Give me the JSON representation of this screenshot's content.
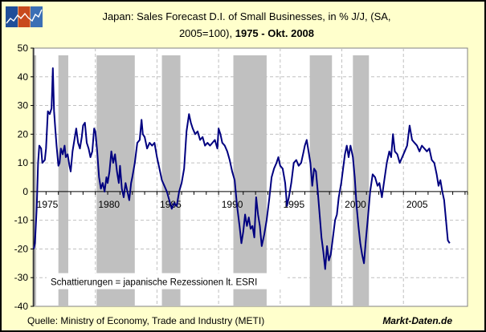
{
  "header": {
    "logo_icon": "chart-logo-icon",
    "title_line1": "Japan: Sales Forecast D.I. of Small Businesses, in % J/J, (SA,",
    "title_line2_normal": "2005=100),",
    "title_line2_bold": "1975 - Okt. 2008"
  },
  "footer": {
    "source": "Quelle:  Ministry of Economy, Trade and Industry (METI)",
    "brand": "Markt-Daten.de"
  },
  "colors": {
    "background": "#ffffcc",
    "plot_background": "#ffffff",
    "line": "#000080",
    "recession_band": "#c0c0c0",
    "grid": "#c0c0c0"
  },
  "chart_data": {
    "type": "line",
    "title": "Japan: Sales Forecast D.I. of Small Businesses, in % J/J, (SA, 2005=100), 1975 - Okt. 2008",
    "xlabel": "",
    "ylabel": "",
    "xlim": [
      1975,
      2010.2
    ],
    "ylim": [
      -40,
      50
    ],
    "yticks": [
      50,
      40,
      30,
      20,
      10,
      0,
      -10,
      -20,
      -30,
      -40
    ],
    "xticks": [
      "1975",
      "1980",
      "1985",
      "1990",
      "1995",
      "2000",
      "2005"
    ],
    "xtick_values": [
      1975,
      1980,
      1985,
      1990,
      1995,
      2000,
      2005
    ],
    "grid": true,
    "annotation": "Schattierungen = japanische Rezessionen lt. ESRI",
    "recessions": [
      [
        1975.0,
        1975.2
      ],
      [
        1977.0,
        1977.8
      ],
      [
        1980.1,
        1983.2
      ],
      [
        1985.4,
        1986.9
      ],
      [
        1991.2,
        1993.9
      ],
      [
        1997.4,
        1999.2
      ],
      [
        2000.9,
        2002.2
      ]
    ],
    "series": [
      {
        "name": "Sales Forecast D.I.",
        "points": [
          [
            1975.0,
            -20
          ],
          [
            1975.1,
            -18
          ],
          [
            1975.25,
            -5
          ],
          [
            1975.35,
            10
          ],
          [
            1975.45,
            16
          ],
          [
            1975.6,
            15
          ],
          [
            1975.7,
            10
          ],
          [
            1975.9,
            11
          ],
          [
            1976.0,
            15
          ],
          [
            1976.15,
            28
          ],
          [
            1976.3,
            27
          ],
          [
            1976.45,
            29
          ],
          [
            1976.55,
            43
          ],
          [
            1976.65,
            28
          ],
          [
            1976.75,
            22
          ],
          [
            1976.85,
            16
          ],
          [
            1977.0,
            9
          ],
          [
            1977.1,
            10
          ],
          [
            1977.2,
            15
          ],
          [
            1977.35,
            13
          ],
          [
            1977.5,
            16
          ],
          [
            1977.6,
            12
          ],
          [
            1977.75,
            13
          ],
          [
            1977.9,
            9
          ],
          [
            1978.0,
            7
          ],
          [
            1978.15,
            14
          ],
          [
            1978.3,
            18
          ],
          [
            1978.45,
            22
          ],
          [
            1978.6,
            17
          ],
          [
            1978.75,
            15
          ],
          [
            1978.9,
            19
          ],
          [
            1979.0,
            23
          ],
          [
            1979.15,
            24
          ],
          [
            1979.3,
            17
          ],
          [
            1979.45,
            15
          ],
          [
            1979.6,
            12
          ],
          [
            1979.75,
            14
          ],
          [
            1979.9,
            22
          ],
          [
            1980.0,
            21
          ],
          [
            1980.15,
            14
          ],
          [
            1980.3,
            5
          ],
          [
            1980.45,
            1
          ],
          [
            1980.6,
            3
          ],
          [
            1980.75,
            0
          ],
          [
            1980.9,
            5
          ],
          [
            1981.0,
            3
          ],
          [
            1981.15,
            7
          ],
          [
            1981.3,
            14
          ],
          [
            1981.45,
            10
          ],
          [
            1981.6,
            13
          ],
          [
            1981.75,
            7
          ],
          [
            1981.9,
            3
          ],
          [
            1982.0,
            9
          ],
          [
            1982.15,
            1
          ],
          [
            1982.3,
            -2
          ],
          [
            1982.45,
            3
          ],
          [
            1982.6,
            0
          ],
          [
            1982.75,
            -3
          ],
          [
            1982.9,
            3
          ],
          [
            1983.0,
            5
          ],
          [
            1983.2,
            10
          ],
          [
            1983.4,
            17
          ],
          [
            1983.6,
            18
          ],
          [
            1983.75,
            25
          ],
          [
            1983.85,
            20
          ],
          [
            1984.0,
            19
          ],
          [
            1984.2,
            15
          ],
          [
            1984.4,
            17
          ],
          [
            1984.6,
            16
          ],
          [
            1984.8,
            17
          ],
          [
            1985.0,
            12
          ],
          [
            1985.2,
            8
          ],
          [
            1985.4,
            4
          ],
          [
            1985.6,
            2
          ],
          [
            1985.8,
            0
          ],
          [
            1986.0,
            -3
          ],
          [
            1986.2,
            -6
          ],
          [
            1986.4,
            -4
          ],
          [
            1986.6,
            -5
          ],
          [
            1986.8,
            0
          ],
          [
            1987.0,
            3
          ],
          [
            1987.2,
            8
          ],
          [
            1987.4,
            21
          ],
          [
            1987.6,
            27
          ],
          [
            1987.75,
            24
          ],
          [
            1987.9,
            22
          ],
          [
            1988.1,
            20
          ],
          [
            1988.3,
            21
          ],
          [
            1988.5,
            18
          ],
          [
            1988.7,
            19
          ],
          [
            1988.9,
            16
          ],
          [
            1989.1,
            17
          ],
          [
            1989.3,
            16
          ],
          [
            1989.5,
            17
          ],
          [
            1989.7,
            18
          ],
          [
            1989.9,
            15
          ],
          [
            1990.0,
            22
          ],
          [
            1990.15,
            20
          ],
          [
            1990.3,
            17
          ],
          [
            1990.5,
            16
          ],
          [
            1990.7,
            14
          ],
          [
            1990.9,
            11
          ],
          [
            1991.1,
            7
          ],
          [
            1991.3,
            4
          ],
          [
            1991.5,
            -5
          ],
          [
            1991.7,
            -12
          ],
          [
            1991.85,
            -18
          ],
          [
            1992.0,
            -14
          ],
          [
            1992.15,
            -8
          ],
          [
            1992.3,
            -12
          ],
          [
            1992.45,
            -9
          ],
          [
            1992.6,
            -13
          ],
          [
            1992.75,
            -12
          ],
          [
            1992.9,
            -16
          ],
          [
            1993.05,
            -2
          ],
          [
            1993.2,
            -8
          ],
          [
            1993.35,
            -12
          ],
          [
            1993.5,
            -19
          ],
          [
            1993.7,
            -15
          ],
          [
            1993.9,
            -10
          ],
          [
            1994.1,
            -3
          ],
          [
            1994.3,
            5
          ],
          [
            1994.5,
            8
          ],
          [
            1994.7,
            10
          ],
          [
            1994.85,
            12
          ],
          [
            1995.0,
            9
          ],
          [
            1995.2,
            8
          ],
          [
            1995.4,
            3
          ],
          [
            1995.55,
            -5
          ],
          [
            1995.7,
            -2
          ],
          [
            1995.9,
            3
          ],
          [
            1996.1,
            10
          ],
          [
            1996.3,
            11
          ],
          [
            1996.5,
            9
          ],
          [
            1996.7,
            10
          ],
          [
            1996.9,
            14
          ],
          [
            1997.0,
            16
          ],
          [
            1997.15,
            18
          ],
          [
            1997.3,
            14
          ],
          [
            1997.45,
            10
          ],
          [
            1997.6,
            2
          ],
          [
            1997.75,
            8
          ],
          [
            1997.9,
            7
          ],
          [
            1998.05,
            0
          ],
          [
            1998.2,
            -8
          ],
          [
            1998.35,
            -16
          ],
          [
            1998.5,
            -21
          ],
          [
            1998.65,
            -27
          ],
          [
            1998.8,
            -19
          ],
          [
            1998.95,
            -24
          ],
          [
            1999.1,
            -22
          ],
          [
            1999.25,
            -17
          ],
          [
            1999.45,
            -10
          ],
          [
            1999.6,
            -8
          ],
          [
            1999.75,
            -2
          ],
          [
            1999.95,
            3
          ],
          [
            2000.1,
            8
          ],
          [
            2000.25,
            13
          ],
          [
            2000.4,
            16
          ],
          [
            2000.55,
            12
          ],
          [
            2000.7,
            16
          ],
          [
            2000.9,
            12
          ],
          [
            2001.05,
            5
          ],
          [
            2001.2,
            -5
          ],
          [
            2001.35,
            -12
          ],
          [
            2001.5,
            -18
          ],
          [
            2001.65,
            -22
          ],
          [
            2001.8,
            -25
          ],
          [
            2001.95,
            -17
          ],
          [
            2002.1,
            -10
          ],
          [
            2002.3,
            0
          ],
          [
            2002.5,
            6
          ],
          [
            2002.7,
            5
          ],
          [
            2002.9,
            2
          ],
          [
            2003.05,
            3
          ],
          [
            2003.25,
            -2
          ],
          [
            2003.45,
            4
          ],
          [
            2003.65,
            10
          ],
          [
            2003.85,
            14
          ],
          [
            2004.0,
            12
          ],
          [
            2004.15,
            20
          ],
          [
            2004.3,
            14
          ],
          [
            2004.5,
            13
          ],
          [
            2004.7,
            10
          ],
          [
            2004.9,
            12
          ],
          [
            2005.1,
            14
          ],
          [
            2005.3,
            16
          ],
          [
            2005.5,
            23
          ],
          [
            2005.7,
            18
          ],
          [
            2005.9,
            17
          ],
          [
            2006.1,
            16
          ],
          [
            2006.3,
            14
          ],
          [
            2006.5,
            16
          ],
          [
            2006.7,
            15
          ],
          [
            2006.9,
            14
          ],
          [
            2007.1,
            15
          ],
          [
            2007.3,
            11
          ],
          [
            2007.5,
            10
          ],
          [
            2007.7,
            6
          ],
          [
            2007.85,
            2
          ],
          [
            2008.0,
            4
          ],
          [
            2008.15,
            0
          ],
          [
            2008.3,
            -3
          ],
          [
            2008.45,
            -10
          ],
          [
            2008.6,
            -17
          ],
          [
            2008.75,
            -18
          ]
        ]
      }
    ]
  }
}
